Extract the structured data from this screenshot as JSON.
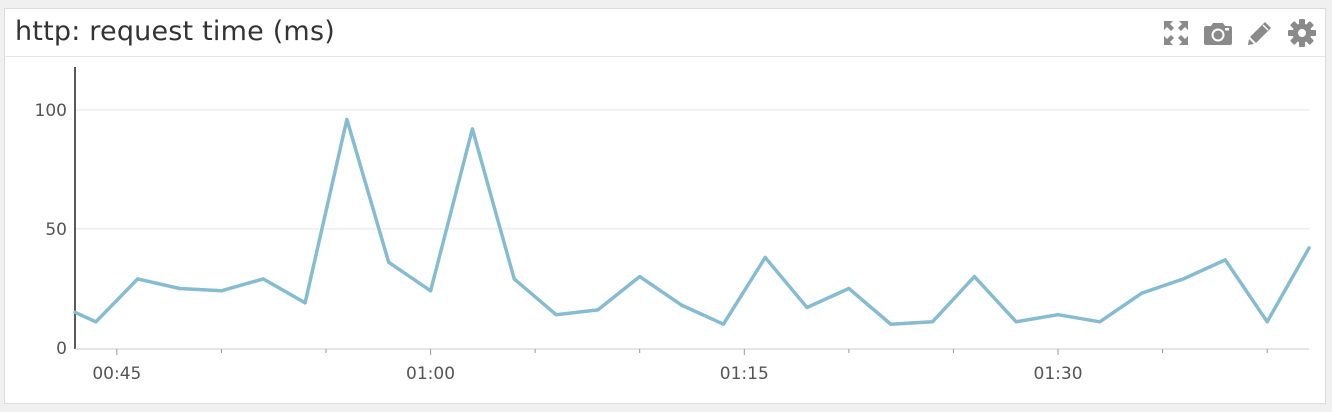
{
  "widget": {
    "title": "http: request time (ms)"
  },
  "toolbar": {
    "icons": [
      "expand-icon",
      "camera-icon",
      "pencil-icon",
      "gear-icon"
    ]
  },
  "colors": {
    "line": "#86bcd2",
    "grid": "#e3e3e3",
    "icon": "#8a8a8a",
    "axis": "#222222"
  },
  "chart_data": {
    "type": "line",
    "title": "http: request time (ms)",
    "xlabel": "",
    "ylabel": "",
    "ylim": [
      0,
      118
    ],
    "yticks": [
      0,
      50,
      100
    ],
    "xlim_minutes": [
      43,
      102
    ],
    "xticks": [
      {
        "label": "00:45",
        "minute": 45
      },
      {
        "label": "01:00",
        "minute": 60
      },
      {
        "label": "01:15",
        "minute": 75
      },
      {
        "label": "01:30",
        "minute": 90
      }
    ],
    "grid": true,
    "legend": "none",
    "series": [
      {
        "x": [
          "00:43",
          "00:44",
          "00:46",
          "00:48",
          "00:50",
          "00:52",
          "00:54",
          "00:56",
          "00:58",
          "01:00",
          "01:02",
          "01:04",
          "01:06",
          "01:08",
          "01:10",
          "01:12",
          "01:14",
          "01:16",
          "01:18",
          "01:20",
          "01:22",
          "01:24",
          "01:26",
          "01:28",
          "01:30",
          "01:32",
          "01:34",
          "01:36",
          "01:38",
          "01:40",
          "01:42"
        ],
        "values": [
          15,
          11,
          29,
          25,
          24,
          29,
          19,
          96,
          36,
          24,
          92,
          29,
          14,
          16,
          30,
          18,
          10,
          38,
          17,
          25,
          10,
          11,
          30,
          11,
          14,
          11,
          23,
          29,
          37,
          11,
          42
        ]
      }
    ]
  }
}
